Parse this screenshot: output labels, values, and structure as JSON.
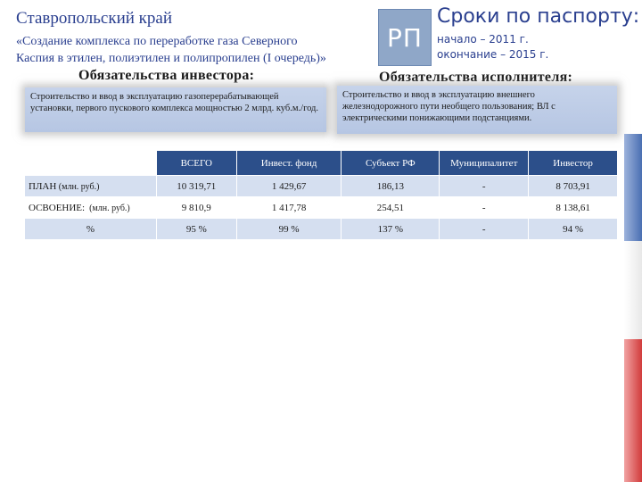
{
  "header": {
    "region": "Ставропольский край",
    "project_line1": "«Создание комплекса по переработке газа Северного",
    "project_line2": "Каспия в этилен, полиэтилен и полипропилен (I очередь)»",
    "badge": "РП",
    "terms_title": "Сроки по паспорту:",
    "terms_start": "начало – 2011 г.",
    "terms_end": "окончание – 2015 г."
  },
  "investor": {
    "heading": "Обязательства инвестора:",
    "text": "Строительство и ввод в эксплуатацию газоперерабатывающей установки, первого пускового комплекса мощностью 2 млрд. куб.м./год."
  },
  "executor": {
    "heading": "Обязательства исполнителя:",
    "text": "Строительство и ввод в эксплуатацию внешнего железнодорожного пути необщего пользования; ВЛ с электрическими понижающими подстанциями."
  },
  "table": {
    "columns": [
      "ВСЕГО",
      "Инвест. фонд",
      "Субъект РФ",
      "Муниципалитет",
      "Инвестор"
    ],
    "rows": [
      {
        "label": "ПЛАН",
        "unit": " (млн. руб.)",
        "values": [
          "10 319,71",
          "1 429,67",
          "186,13",
          "-",
          "8 703,91"
        ]
      },
      {
        "label": "ОСВОЕНИЕ:",
        "unit": "  (млн. руб.)",
        "values": [
          "9 810,9",
          "1 417,78",
          "254,51",
          "-",
          "8 138,61"
        ]
      },
      {
        "label": "",
        "unit": "%",
        "values": [
          "95 %",
          "99 %",
          "137 %",
          "-",
          "94 %"
        ]
      }
    ]
  },
  "colors": {
    "title_blue": "#2a3f8f",
    "header_blue": "#2c4f8a",
    "row_light": "#d5dff0",
    "strip": [
      "#4a6fb2",
      "#e8e8e8",
      "#d13b3b"
    ]
  }
}
